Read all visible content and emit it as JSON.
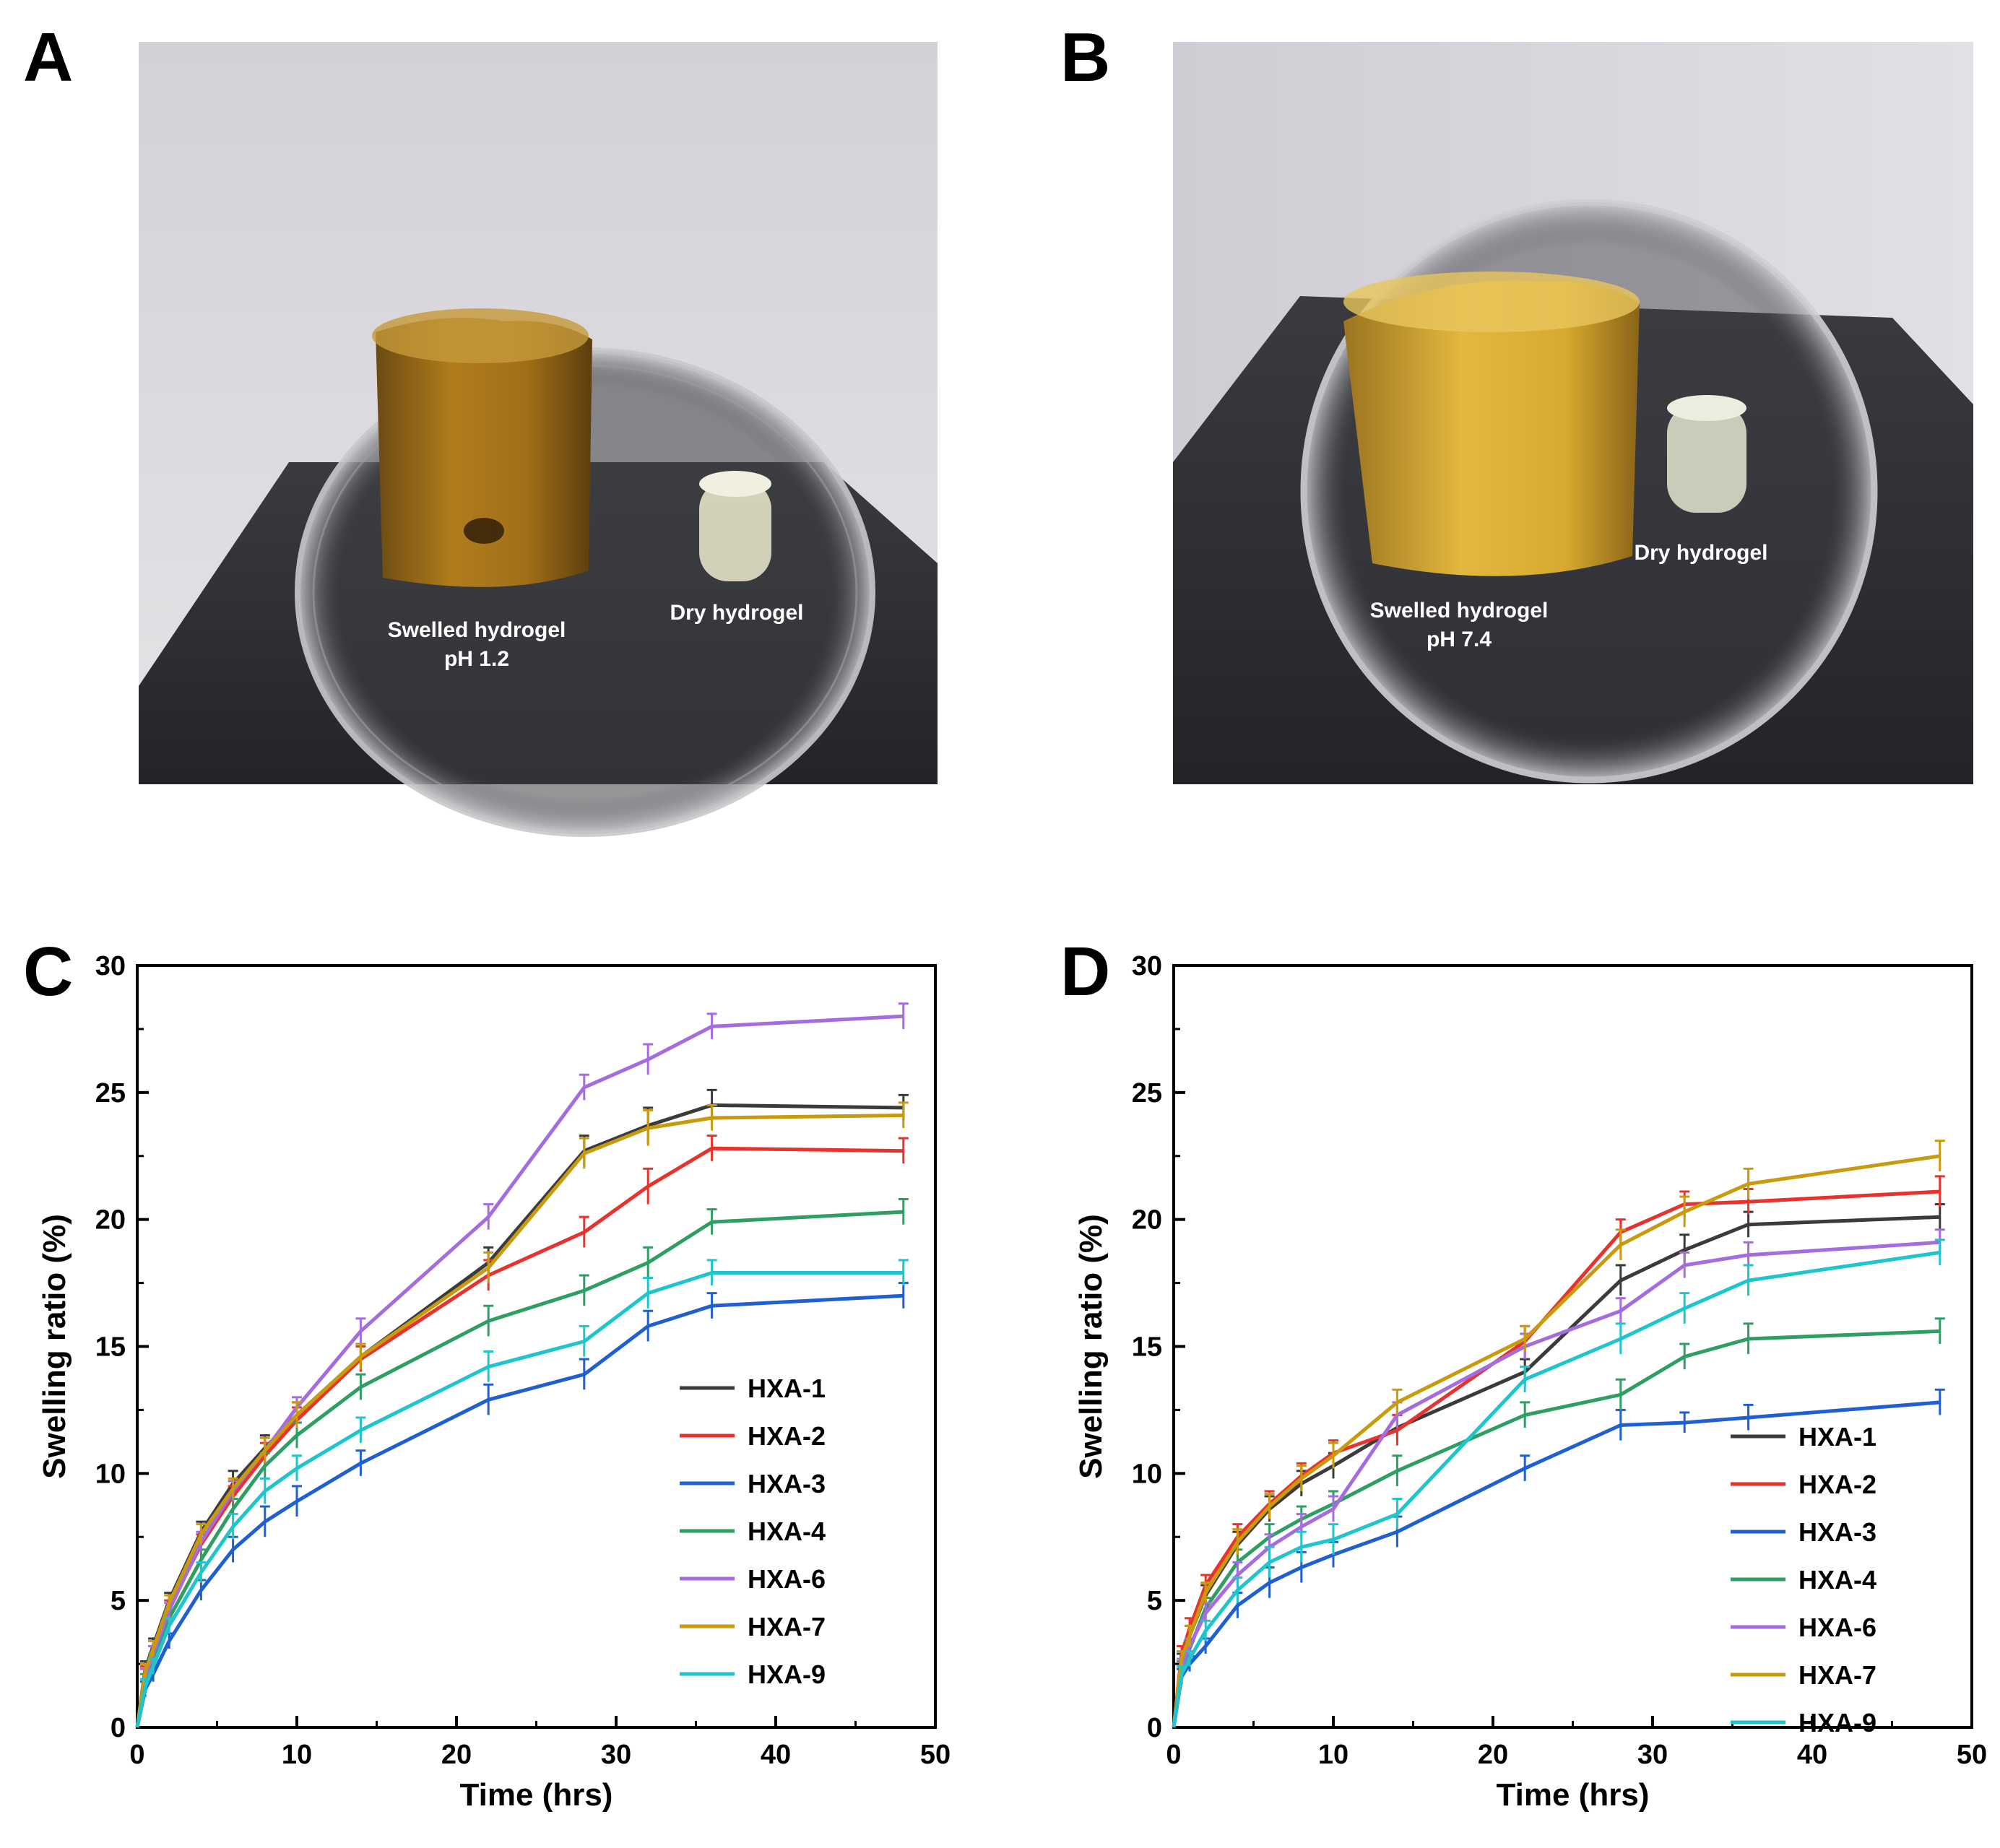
{
  "photos": [
    {
      "letter": "A",
      "swelled_label_line1": "Swelled hydrogel",
      "swelled_label_line2": "pH 1.2",
      "dry_label": "Dry hydrogel"
    },
    {
      "letter": "B",
      "swelled_label_line1": "Swelled hydrogel",
      "swelled_label_line2": "pH 7.4",
      "dry_label": "Dry hydrogel"
    }
  ],
  "chart_data": [
    {
      "panel": "C",
      "type": "line",
      "xlabel": "Time (hrs)",
      "ylabel": "Swelling ratio (%)",
      "xlim": [
        0,
        50
      ],
      "ylim": [
        0,
        30
      ],
      "xticks": [
        0,
        10,
        20,
        30,
        40,
        50
      ],
      "yticks": [
        0,
        5,
        10,
        15,
        20,
        25,
        30
      ],
      "error_bars": true,
      "legend_position": "bottom-right",
      "x": [
        0,
        0.5,
        1,
        2,
        4,
        6,
        8,
        10,
        14,
        22,
        28,
        32,
        36,
        48
      ],
      "series": [
        {
          "name": "HXA-1",
          "color": "#3b3b3b",
          "values": [
            0,
            2.3,
            3.2,
            5.0,
            7.7,
            9.6,
            11.0,
            12.3,
            14.6,
            18.3,
            22.7,
            23.7,
            24.5,
            24.4
          ],
          "err": [
            0.3,
            0.3,
            0.3,
            0.3,
            0.4,
            0.5,
            0.5,
            0.5,
            0.5,
            0.6,
            0.6,
            0.7,
            0.6,
            0.5
          ]
        },
        {
          "name": "HXA-2",
          "color": "#e8322e",
          "values": [
            0,
            2.1,
            2.9,
            4.7,
            7.2,
            9.1,
            10.7,
            12.1,
            14.5,
            17.8,
            19.5,
            21.3,
            22.8,
            22.7
          ],
          "err": [
            0.3,
            0.3,
            0.3,
            0.3,
            0.4,
            0.4,
            0.5,
            0.5,
            0.5,
            0.6,
            0.6,
            0.7,
            0.5,
            0.5
          ]
        },
        {
          "name": "HXA-3",
          "color": "#1f5fd1",
          "values": [
            0,
            1.5,
            2.1,
            3.4,
            5.4,
            7.0,
            8.1,
            8.9,
            10.4,
            12.9,
            13.9,
            15.8,
            16.6,
            17.0
          ],
          "err": [
            0.3,
            0.3,
            0.3,
            0.3,
            0.4,
            0.5,
            0.6,
            0.6,
            0.5,
            0.6,
            0.6,
            0.6,
            0.5,
            0.5
          ]
        },
        {
          "name": "HXA-4",
          "color": "#2e9e63",
          "values": [
            0,
            1.8,
            2.6,
            4.3,
            6.6,
            8.6,
            10.3,
            11.5,
            13.4,
            16.0,
            17.2,
            18.3,
            19.9,
            20.3
          ],
          "err": [
            0.3,
            0.3,
            0.3,
            0.3,
            0.4,
            0.4,
            0.5,
            0.5,
            0.5,
            0.6,
            0.6,
            0.6,
            0.5,
            0.5
          ]
        },
        {
          "name": "HXA-6",
          "color": "#a56ce0",
          "values": [
            0,
            2.0,
            2.9,
            4.6,
            7.3,
            9.3,
            10.9,
            12.6,
            15.6,
            20.1,
            25.2,
            26.3,
            27.6,
            28.0
          ],
          "err": [
            0.3,
            0.3,
            0.3,
            0.3,
            0.4,
            0.4,
            0.5,
            0.4,
            0.5,
            0.5,
            0.5,
            0.6,
            0.5,
            0.5
          ]
        },
        {
          "name": "HXA-7",
          "color": "#c99a0c",
          "values": [
            0,
            2.2,
            3.1,
            4.9,
            7.6,
            9.4,
            10.9,
            12.3,
            14.6,
            18.1,
            22.6,
            23.6,
            24.0,
            24.1
          ],
          "err": [
            0.3,
            0.3,
            0.3,
            0.3,
            0.4,
            0.4,
            0.5,
            0.5,
            0.5,
            0.6,
            0.6,
            0.7,
            0.5,
            0.5
          ]
        },
        {
          "name": "HXA-9",
          "color": "#1ec5cc",
          "values": [
            0,
            1.6,
            2.4,
            4.0,
            6.1,
            7.9,
            9.3,
            10.2,
            11.7,
            14.2,
            15.2,
            17.1,
            17.9,
            17.9
          ],
          "err": [
            0.3,
            0.3,
            0.3,
            0.3,
            0.4,
            0.5,
            0.5,
            0.5,
            0.5,
            0.6,
            0.6,
            0.6,
            0.5,
            0.5
          ]
        }
      ]
    },
    {
      "panel": "D",
      "type": "line",
      "xlabel": "Time (hrs)",
      "ylabel": "Swelling ratio (%)",
      "xlim": [
        0,
        50
      ],
      "ylim": [
        0,
        30
      ],
      "xticks": [
        0,
        10,
        20,
        30,
        40,
        50
      ],
      "yticks": [
        0,
        5,
        10,
        15,
        20,
        25,
        30
      ],
      "error_bars": true,
      "legend_position": "bottom-right",
      "x": [
        0,
        0.5,
        1,
        2,
        4,
        6,
        8,
        10,
        14,
        22,
        28,
        32,
        36,
        48
      ],
      "series": [
        {
          "name": "HXA-1",
          "color": "#3b3b3b",
          "values": [
            0,
            2.6,
            3.6,
            5.2,
            7.2,
            8.6,
            9.6,
            10.3,
            11.8,
            14.0,
            17.6,
            18.8,
            19.8,
            20.1
          ],
          "err": [
            0.3,
            0.3,
            0.4,
            0.4,
            0.5,
            0.5,
            0.5,
            0.5,
            0.5,
            0.5,
            0.6,
            0.6,
            0.5,
            0.5
          ]
        },
        {
          "name": "HXA-2",
          "color": "#e8322e",
          "values": [
            0,
            2.9,
            3.9,
            5.6,
            7.5,
            8.8,
            9.9,
            10.8,
            11.7,
            15.2,
            19.5,
            20.6,
            20.7,
            21.1
          ],
          "err": [
            0.3,
            0.3,
            0.4,
            0.4,
            0.5,
            0.5,
            0.5,
            0.5,
            0.6,
            0.6,
            0.5,
            0.5,
            0.5,
            0.6
          ]
        },
        {
          "name": "HXA-3",
          "color": "#1f5fd1",
          "values": [
            0,
            2.0,
            2.5,
            3.2,
            4.8,
            5.7,
            6.3,
            6.8,
            7.7,
            10.2,
            11.9,
            12.0,
            12.2,
            12.8
          ],
          "err": [
            0.3,
            0.3,
            0.3,
            0.3,
            0.5,
            0.6,
            0.6,
            0.5,
            0.6,
            0.5,
            0.6,
            0.4,
            0.5,
            0.5
          ]
        },
        {
          "name": "HXA-4",
          "color": "#2e9e63",
          "values": [
            0,
            2.3,
            3.1,
            4.7,
            6.5,
            7.5,
            8.2,
            8.8,
            10.1,
            12.3,
            13.1,
            14.6,
            15.3,
            15.6
          ],
          "err": [
            0.3,
            0.3,
            0.3,
            0.4,
            0.5,
            0.5,
            0.5,
            0.5,
            0.6,
            0.5,
            0.6,
            0.5,
            0.6,
            0.5
          ]
        },
        {
          "name": "HXA-6",
          "color": "#a56ce0",
          "values": [
            0,
            2.4,
            3.2,
            4.5,
            6.0,
            7.1,
            7.9,
            8.6,
            12.3,
            15.0,
            16.4,
            18.2,
            18.6,
            19.1
          ],
          "err": [
            0.3,
            0.3,
            0.3,
            0.4,
            0.5,
            0.5,
            0.5,
            0.5,
            0.5,
            0.5,
            0.5,
            0.5,
            0.5,
            0.5
          ]
        },
        {
          "name": "HXA-7",
          "color": "#c99a0c",
          "values": [
            0,
            2.7,
            3.6,
            5.3,
            7.3,
            8.7,
            9.8,
            10.7,
            12.8,
            15.3,
            19.0,
            20.3,
            21.4,
            22.5
          ],
          "err": [
            0.3,
            0.3,
            0.4,
            0.4,
            0.5,
            0.5,
            0.5,
            0.5,
            0.5,
            0.5,
            0.6,
            0.6,
            0.6,
            0.6
          ]
        },
        {
          "name": "HXA-9",
          "color": "#1ec5cc",
          "values": [
            0,
            2.1,
            2.7,
            3.8,
            5.4,
            6.5,
            7.1,
            7.4,
            8.4,
            13.7,
            15.3,
            16.5,
            17.6,
            18.7
          ],
          "err": [
            0.3,
            0.3,
            0.3,
            0.4,
            0.5,
            0.6,
            0.6,
            0.6,
            0.6,
            0.5,
            0.6,
            0.6,
            0.6,
            0.5
          ]
        }
      ]
    }
  ]
}
